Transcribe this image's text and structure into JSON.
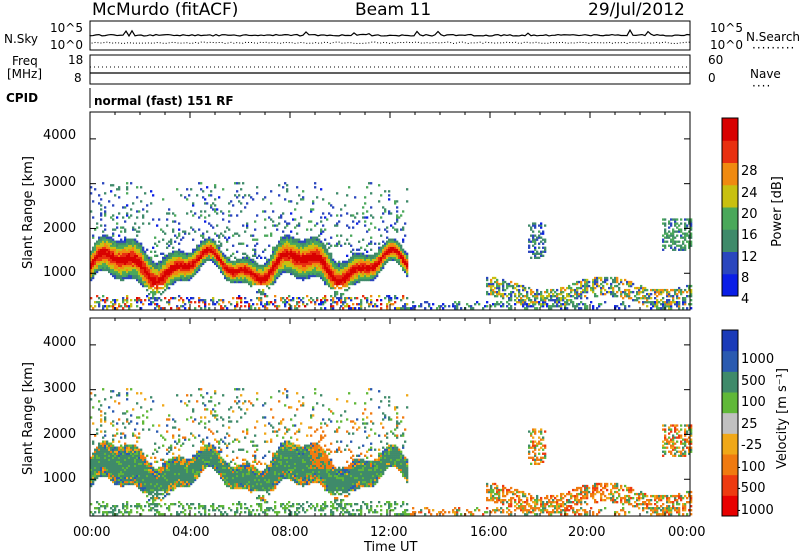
{
  "header": {
    "site": "McMurdo (fitACF)",
    "beam": "Beam 11",
    "date": "29/Jul/2012"
  },
  "side_labels": {
    "nsky": "N.Sky",
    "nsearch": "N.Search",
    "freq_line1": "Freq",
    "freq_line2": "[MHz]",
    "nave": "Nave",
    "cpid": "CPID",
    "nsearch_legend": "·········",
    "nave_legend": "····"
  },
  "noise_panel": {
    "left_ticks": [
      "10^5",
      "10^0"
    ],
    "right_ticks": [
      "10^5",
      "10^0"
    ]
  },
  "freq_panel": {
    "left_ticks": [
      "18",
      "8"
    ],
    "right_ticks": [
      "60",
      "0"
    ]
  },
  "mode_text": "normal (fast) 151 RF",
  "x_axis": {
    "label": "Time UT",
    "ticks": [
      "00:00",
      "04:00",
      "08:00",
      "12:00",
      "16:00",
      "20:00",
      "00:00"
    ]
  },
  "colors": {
    "power": [
      "#0a1ee6",
      "#2a46be",
      "#3f8a6a",
      "#4aa85a",
      "#c8c010",
      "#f08a10",
      "#e83010",
      "#d80000"
    ],
    "velocity": [
      "#e80000",
      "#ee3a10",
      "#f07a10",
      "#f0a818",
      "#c0c0c0",
      "#60b838",
      "#3f8a6a",
      "#2a5ab0",
      "#1a3ab8"
    ]
  },
  "chart_data": [
    {
      "type": "heatmap",
      "title": "",
      "xlabel": "",
      "ylabel": "Slant Range [km]",
      "xlim": [
        0,
        24
      ],
      "ylim": [
        180,
        4600
      ],
      "yticks": [
        1000,
        2000,
        3000,
        4000
      ],
      "colorbar": {
        "label": "Power [dB]",
        "ticks": [
          "4",
          "8",
          "12",
          "16",
          "20",
          "24",
          "28"
        ],
        "range": [
          0,
          32
        ]
      }
    },
    {
      "type": "heatmap",
      "title": "",
      "xlabel": "Time UT",
      "ylabel": "Slant Range [km]",
      "xlim": [
        0,
        24
      ],
      "ylim": [
        180,
        4600
      ],
      "yticks": [
        1000,
        2000,
        3000,
        4000
      ],
      "colorbar": {
        "label": "Velocity [m s⁻¹]",
        "ticks": [
          "-1000",
          "-500",
          "-100",
          "-25",
          "25",
          "100",
          "500",
          "1000"
        ]
      }
    }
  ]
}
